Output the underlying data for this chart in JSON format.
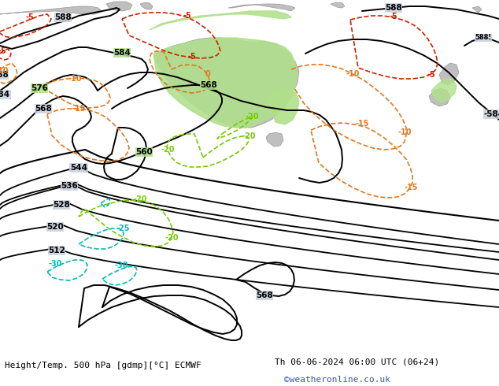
{
  "title_left": "Height/Temp. 500 hPa [gdmp][°C] ECMWF",
  "title_right": "Th 06-06-2024 06:00 UTC (06+24)",
  "credit": "©weatheronline.co.uk",
  "bg_color": "#c8d0dc",
  "land_color": "#c0bfbf",
  "highlight_color": "#b0e08a",
  "fig_width": 6.34,
  "fig_height": 4.9,
  "dpi": 100,
  "title_fontsize": 8.0,
  "credit_fontsize": 8.0,
  "credit_color": "#3355bb",
  "black_lw": 1.4,
  "temp_lw": 1.2,
  "RED": "#cc2200",
  "ORA": "#e07820",
  "GRN": "#77cc00",
  "CYN": "#00bbbb"
}
